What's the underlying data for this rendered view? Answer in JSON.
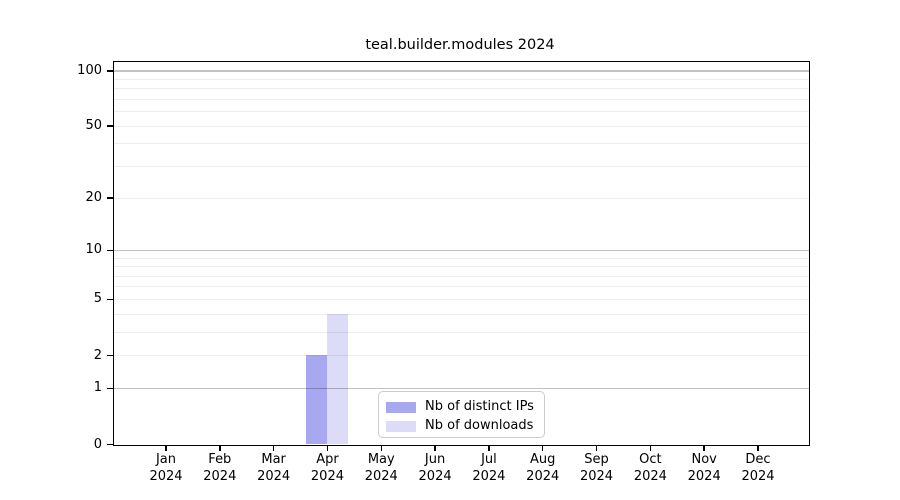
{
  "chart_data": {
    "type": "bar",
    "title": "teal.builder.modules 2024",
    "categories": [
      "Jan",
      "Feb",
      "Mar",
      "Apr",
      "May",
      "Jun",
      "Jul",
      "Aug",
      "Sep",
      "Oct",
      "Nov",
      "Dec"
    ],
    "x_year_label": "2024",
    "series": [
      {
        "name": "Nb of distinct IPs",
        "color": "#a8a8f0",
        "values": [
          0,
          0,
          0,
          2,
          0,
          0,
          0,
          0,
          0,
          0,
          0,
          0
        ]
      },
      {
        "name": "Nb of downloads",
        "color": "#dcdcf8",
        "values": [
          0,
          0,
          0,
          4,
          0,
          0,
          0,
          0,
          0,
          0,
          0,
          0
        ]
      }
    ],
    "yscale": "log10(1+y)",
    "ylim": [
      0,
      111
    ],
    "y_tick_values": [
      0,
      1,
      2,
      5,
      10,
      20,
      50,
      100
    ],
    "y_major_gridlines": [
      1,
      10,
      100
    ],
    "y_minor_gridlines": [
      2,
      3,
      4,
      5,
      6,
      7,
      8,
      9,
      20,
      30,
      40,
      50,
      60,
      70,
      80,
      90
    ],
    "grid": "on",
    "legend_position": "bottom-center"
  },
  "style_colors": {
    "bar_distinct_ips": "#a8a8f0",
    "bar_downloads": "#dcdcf8",
    "axis": "#000000",
    "legend_border": "#cccccc"
  }
}
